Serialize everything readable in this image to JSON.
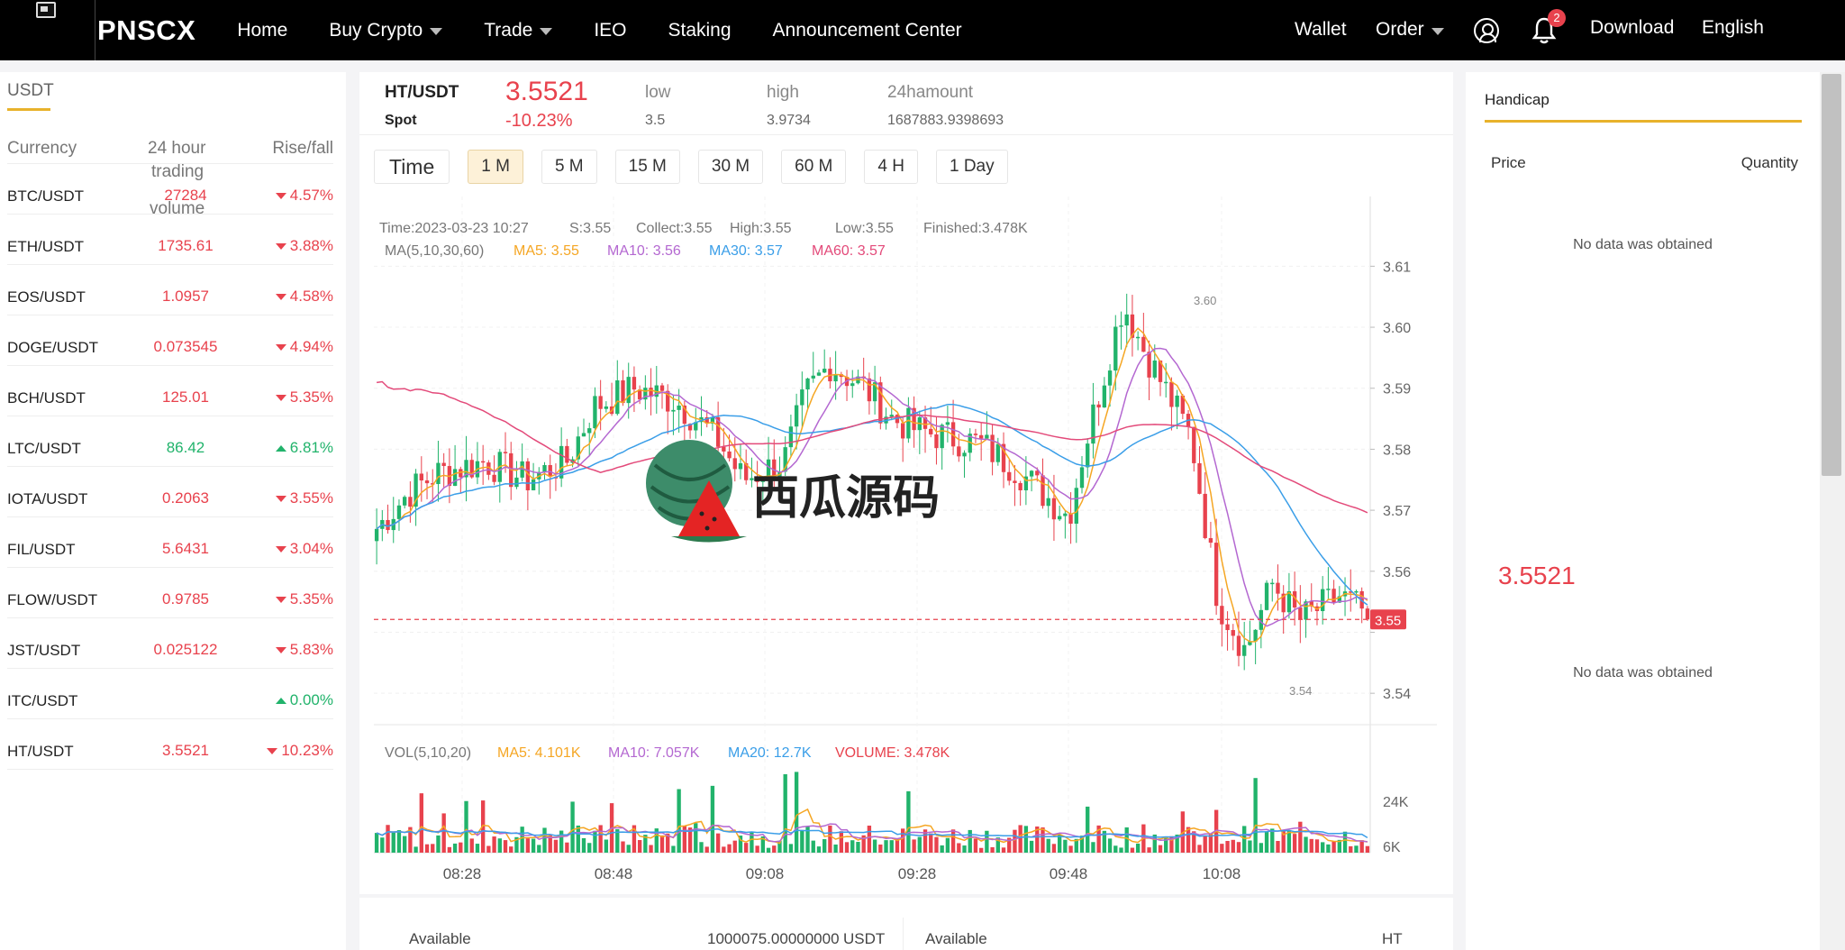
{
  "nav": {
    "brand": "PNSCX",
    "items": [
      "Home",
      "Buy Crypto",
      "Trade",
      "IEO",
      "Staking",
      "Announcement Center"
    ],
    "right": {
      "wallet": "Wallet",
      "order": "Order",
      "notifications": "2",
      "download": "Download",
      "language": "English"
    }
  },
  "markets": {
    "tab": "USDT",
    "headers": {
      "currency": "Currency",
      "volume_line1": "24 hour",
      "volume_line2": "trading",
      "volume_line3": "volume",
      "change": "Rise/fall"
    },
    "rows": [
      {
        "symbol": "BTC/USDT",
        "price": "27284",
        "change": "4.57%",
        "dir": "down"
      },
      {
        "symbol": "ETH/USDT",
        "price": "1735.61",
        "change": "3.88%",
        "dir": "down"
      },
      {
        "symbol": "EOS/USDT",
        "price": "1.0957",
        "change": "4.58%",
        "dir": "down"
      },
      {
        "symbol": "DOGE/USDT",
        "price": "0.073545",
        "change": "4.94%",
        "dir": "down"
      },
      {
        "symbol": "BCH/USDT",
        "price": "125.01",
        "change": "5.35%",
        "dir": "down"
      },
      {
        "symbol": "LTC/USDT",
        "price": "86.42",
        "change": "6.81%",
        "dir": "up"
      },
      {
        "symbol": "IOTA/USDT",
        "price": "0.2063",
        "change": "3.55%",
        "dir": "down"
      },
      {
        "symbol": "FIL/USDT",
        "price": "5.6431",
        "change": "3.04%",
        "dir": "down"
      },
      {
        "symbol": "FLOW/USDT",
        "price": "0.9785",
        "change": "5.35%",
        "dir": "down"
      },
      {
        "symbol": "JST/USDT",
        "price": "0.025122",
        "change": "5.83%",
        "dir": "down"
      },
      {
        "symbol": "ITC/USDT",
        "price": "",
        "change": "0.00%",
        "dir": "up"
      },
      {
        "symbol": "HT/USDT",
        "price": "3.5521",
        "change": "10.23%",
        "dir": "down"
      }
    ]
  },
  "ticker": {
    "pair": "HT/USDT",
    "type": "Spot",
    "price": "3.5521",
    "change": "-10.23%",
    "low_label": "low",
    "low": "3.5",
    "high_label": "high",
    "high": "3.9734",
    "amount_label": "24hamount",
    "amount": "1687883.9398693"
  },
  "timeframes": [
    "Time",
    "1 M",
    "5 M",
    "15 M",
    "30 M",
    "60 M",
    "4 H",
    "1 Day"
  ],
  "active_timeframe": "1 M",
  "chart_info": {
    "time": "Time:2023-03-23 10:27",
    "s": "S:3.55",
    "collect": "Collect:3.55",
    "high": "High:3.55",
    "low": "Low:3.55",
    "finished": "Finished:3.478K",
    "ma_label": "MA(5,10,30,60)",
    "ma5": "MA5: 3.55",
    "ma10": "MA10: 3.56",
    "ma30": "MA30: 3.57",
    "ma60": "MA60: 3.57",
    "vol_label": "VOL(5,10,20)",
    "vma5": "MA5: 4.101K",
    "vma10": "MA10: 7.057K",
    "vma20": "MA20: 12.7K",
    "volume": "VOLUME: 3.478K",
    "max_label": "3.60",
    "min_label": "3.54",
    "current_tag": "3.55"
  },
  "chart_data": {
    "type": "candlestick",
    "price_ticks": [
      3.61,
      3.6,
      3.59,
      3.58,
      3.57,
      3.56,
      3.55,
      3.54
    ],
    "price_tick_labels": [
      "3.61",
      "3.60",
      "3.59",
      "3.58",
      "3.57",
      "3.56",
      "",
      "3.54"
    ],
    "volume_ticks": [
      "24K",
      "6K"
    ],
    "x_labels": [
      "08:28",
      "08:48",
      "09:08",
      "09:28",
      "09:48",
      "10:08"
    ],
    "current_price": 3.5521
  },
  "watermark": "西瓜源码",
  "wallet": {
    "available1": "Available",
    "amount1": "1000075.00000000",
    "unit1": "USDT",
    "available2": "Available",
    "unit2": "HT"
  },
  "handicap": {
    "title": "Handicap",
    "price": "Price",
    "quantity": "Quantity",
    "empty_top": "No data was obtained",
    "mid_price": "3.5521",
    "empty_bottom": "No data was obtained"
  },
  "colors": {
    "up": "#21b36b",
    "down": "#e8424d",
    "accent": "#e8b22b",
    "ma5": "#f5a623",
    "ma10": "#b468d1",
    "ma30": "#3a9ee8",
    "ma60": "#e34a7a"
  }
}
